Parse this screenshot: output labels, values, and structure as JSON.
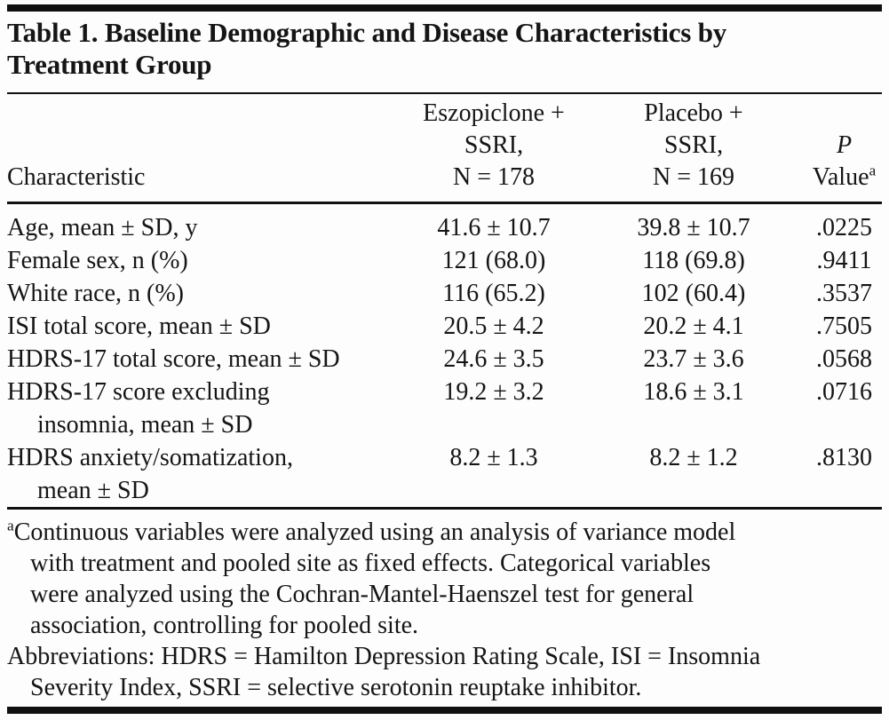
{
  "colors": {
    "text": "#151515",
    "rule": "#101010",
    "background": "#fdfdfd"
  },
  "table": {
    "title_line1": "Table 1. Baseline Demographic and Disease Characteristics by",
    "title_line2": "Treatment Group",
    "header": {
      "characteristic": "Characteristic",
      "group1": [
        "Eszopiclone +",
        "SSRI,",
        "N = 178"
      ],
      "group2": [
        "Placebo +",
        "SSRI,",
        "N = 169"
      ],
      "p_line1": "P",
      "p_line2": "Value",
      "p_sup": "a"
    },
    "rows": [
      {
        "label1": "Age, mean ± SD, y",
        "eszopiclone": "41.6 ± 10.7",
        "placebo": "39.8 ± 10.7",
        "p": ".0225"
      },
      {
        "label1": "Female sex, n (%)",
        "eszopiclone": "121 (68.0)",
        "placebo": "118 (69.8)",
        "p": ".9411"
      },
      {
        "label1": "White race, n (%)",
        "eszopiclone": "116 (65.2)",
        "placebo": "102 (60.4)",
        "p": ".3537"
      },
      {
        "label1": "ISI total score, mean ± SD",
        "eszopiclone": "20.5 ± 4.2",
        "placebo": "20.2 ± 4.1",
        "p": ".7505"
      },
      {
        "label1": "HDRS-17 total score, mean ± SD",
        "eszopiclone": "24.6 ± 3.5",
        "placebo": "23.7 ± 3.6",
        "p": ".0568"
      },
      {
        "label1": "HDRS-17 score excluding",
        "label2": "insomnia, mean ± SD",
        "eszopiclone": "19.2 ± 3.2",
        "placebo": "18.6 ± 3.1",
        "p": ".0716"
      },
      {
        "label1": "HDRS anxiety/somatization,",
        "label2": "mean ± SD",
        "eszopiclone": "8.2 ± 1.3",
        "placebo": "8.2 ± 1.2",
        "p": ".8130"
      }
    ]
  },
  "footnotes": {
    "lines": [
      {
        "sup": "a",
        "text": "Continuous variables were analyzed using an analysis of variance model",
        "indent": false
      },
      {
        "text": "with treatment and pooled site as fixed effects. Categorical variables",
        "indent": true
      },
      {
        "text": "were analyzed using the Cochran-Mantel-Haenszel test for general",
        "indent": true
      },
      {
        "text": "association, controlling for pooled site.",
        "indent": true
      },
      {
        "text": "Abbreviations: HDRS = Hamilton Depression Rating Scale, ISI = Insomnia",
        "indent": false
      },
      {
        "text": "Severity Index, SSRI = selective serotonin reuptake inhibitor.",
        "indent": true
      }
    ]
  }
}
